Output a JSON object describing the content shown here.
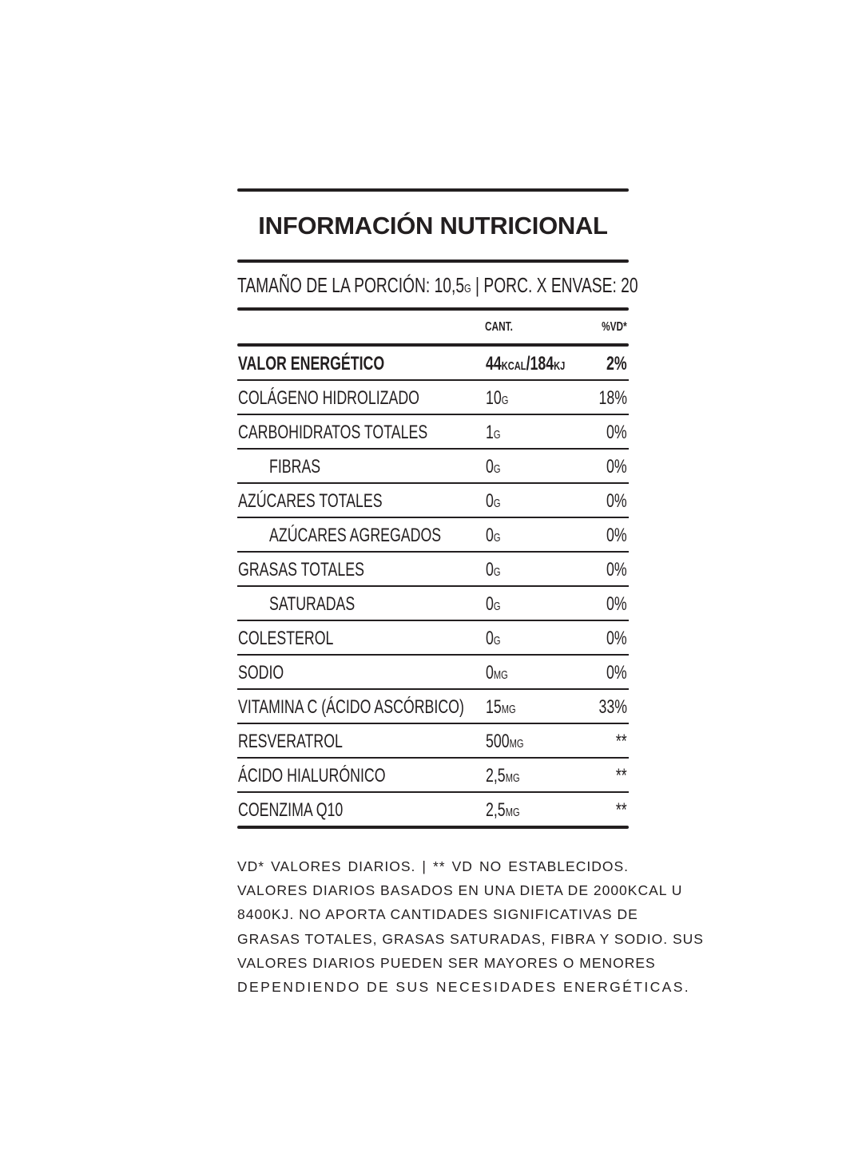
{
  "title": "INFORMACIÓN NUTRICIONAL",
  "serving": {
    "size_label": "TAMAÑO DE LA PORCIÓN: 10,5",
    "size_unit": "G",
    "separator": " | ",
    "per_container": "PORC. X ENVASE: 20"
  },
  "columns": {
    "amount": "CANT.",
    "dv": "%VD*"
  },
  "rows": [
    {
      "name": "VALOR ENERGÉTICO",
      "amount": "44",
      "unit": "KCAL",
      "amount2": "/184",
      "unit2": "KJ",
      "dv": "2%",
      "bold": true
    },
    {
      "name": "COLÁGENO HIDROLIZADO",
      "amount": "10",
      "unit": "G",
      "dv": "18%"
    },
    {
      "name": "CARBOHIDRATOS TOTALES",
      "amount": "1",
      "unit": "G",
      "dv": "0%"
    },
    {
      "name": "FIBRAS",
      "amount": "0",
      "unit": "G",
      "dv": "0%",
      "indent": true
    },
    {
      "name": "AZÚCARES TOTALES",
      "amount": "0",
      "unit": "G",
      "dv": "0%"
    },
    {
      "name": "AZÚCARES AGREGADOS",
      "amount": "0",
      "unit": "G",
      "dv": "0%",
      "indent": true
    },
    {
      "name": "GRASAS TOTALES",
      "amount": "0",
      "unit": "G",
      "dv": "0%"
    },
    {
      "name": "SATURADAS",
      "amount": "0",
      "unit": "G",
      "dv": "0%",
      "indent": true
    },
    {
      "name": "COLESTEROL",
      "amount": "0",
      "unit": "G",
      "dv": "0%"
    },
    {
      "name": "SODIO",
      "amount": "0",
      "unit": "MG",
      "dv": "0%"
    },
    {
      "name": "VITAMINA C (ÁCIDO ASCÓRBICO)",
      "amount": "15",
      "unit": "MG",
      "dv": "33%"
    },
    {
      "name": "RESVERATROL",
      "amount": "500",
      "unit": "MG",
      "dv": "**"
    },
    {
      "name": "ÁCIDO HIALURÓNICO",
      "amount": "2,5",
      "unit": "MG",
      "dv": "**"
    },
    {
      "name": "COENZIMA Q10",
      "amount": "2,5",
      "unit": "MG",
      "dv": "**"
    }
  ],
  "footnote_lines": [
    "VD* VALORES DIARIOS.   |   ** VD NO ESTABLECIDOS.",
    "VALORES DIARIOS BASADOS EN UNA DIETA DE 2000KCAL U",
    "8400KJ. NO APORTA CANTIDADES SIGNIFICATIVAS DE",
    "GRASAS TOTALES, GRASAS SATURADAS, FIBRA Y SODIO. SUS",
    "VALORES DIARIOS PUEDEN SER MAYORES O MENORES",
    "DEPENDIENDO DE SUS NECESIDADES ENERGÉTICAS."
  ]
}
